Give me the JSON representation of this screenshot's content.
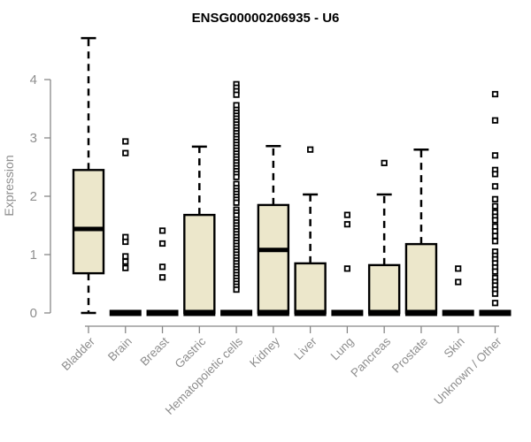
{
  "chart_data": {
    "type": "boxplot",
    "title": "ENSG00000206935 - U6",
    "ylabel": "Expression",
    "xlabel": "",
    "ylim": [
      0,
      4.75
    ],
    "yticks": [
      0,
      1,
      2,
      3,
      4
    ],
    "grid": false,
    "legend": false,
    "colors": {
      "box_fill": "#ece7cb",
      "box_line": "#000000",
      "axis": "#888888",
      "tick_text": "#8e8e8e",
      "title_text": "#000000"
    },
    "categories": [
      "Bladder",
      "Brain",
      "Breast",
      "Gastric",
      "Hematopoietic cells",
      "Kidney",
      "Liver",
      "Lung",
      "Pancreas",
      "Prostate",
      "Skin",
      "Unknown / Other"
    ],
    "boxes": [
      {
        "category": "Bladder",
        "low": 0,
        "q1": 0.68,
        "median": 1.44,
        "q3": 2.45,
        "high": 4.71,
        "outliers": []
      },
      {
        "category": "Brain",
        "low": 0,
        "q1": 0,
        "median": 0,
        "q3": 0,
        "high": 0,
        "outliers": [
          2.94,
          2.74,
          1.3,
          1.22,
          0.97,
          0.88,
          0.77
        ]
      },
      {
        "category": "Breast",
        "low": 0,
        "q1": 0,
        "median": 0,
        "q3": 0,
        "high": 0,
        "outliers": [
          1.41,
          1.19,
          0.79,
          0.61
        ]
      },
      {
        "category": "Gastric",
        "low": 0,
        "q1": 0,
        "median": 0,
        "q3": 1.68,
        "high": 2.85,
        "outliers": []
      },
      {
        "category": "Hematopoietic cells",
        "low": 0,
        "q1": 0,
        "median": 0,
        "q3": 0,
        "high": 0,
        "outliers": [
          3.92,
          3.86,
          3.8,
          3.74,
          3.56,
          3.48,
          3.43,
          3.38,
          3.33,
          3.28,
          3.23,
          3.18,
          3.13,
          3.08,
          3.03,
          2.98,
          2.93,
          2.88,
          2.83,
          2.78,
          2.73,
          2.68,
          2.63,
          2.58,
          2.53,
          2.48,
          2.43,
          2.38,
          2.33,
          2.21,
          2.14,
          2.09,
          2.04,
          1.99,
          1.94,
          1.89,
          1.77,
          1.72,
          1.67,
          1.6,
          1.55,
          1.5,
          1.45,
          1.4,
          1.35,
          1.3,
          1.25,
          1.2,
          1.15,
          1.1,
          1.05,
          1.0,
          0.95,
          0.9,
          0.85,
          0.8,
          0.75,
          0.7,
          0.65,
          0.6,
          0.55,
          0.5,
          0.45,
          0.4
        ]
      },
      {
        "category": "Kidney",
        "low": 0,
        "q1": 0,
        "median": 1.08,
        "q3": 1.85,
        "high": 2.86,
        "outliers": []
      },
      {
        "category": "Liver",
        "low": 0,
        "q1": 0,
        "median": 0,
        "q3": 0.85,
        "high": 2.03,
        "outliers": [
          2.8
        ]
      },
      {
        "category": "Lung",
        "low": 0,
        "q1": 0,
        "median": 0,
        "q3": 0,
        "high": 0,
        "outliers": [
          1.68,
          1.52,
          0.76
        ]
      },
      {
        "category": "Pancreas",
        "low": 0,
        "q1": 0,
        "median": 0,
        "q3": 0.82,
        "high": 2.03,
        "outliers": [
          2.57
        ]
      },
      {
        "category": "Prostate",
        "low": 0,
        "q1": 0,
        "median": 0,
        "q3": 1.18,
        "high": 2.8,
        "outliers": []
      },
      {
        "category": "Skin",
        "low": 0,
        "q1": 0,
        "median": 0,
        "q3": 0,
        "high": 0,
        "outliers": [
          0.76,
          0.53
        ]
      },
      {
        "category": "Unknown / Other",
        "low": 0,
        "q1": 0,
        "median": 0,
        "q3": 0,
        "high": 0,
        "outliers": [
          3.75,
          3.3,
          2.7,
          2.45,
          2.38,
          2.17,
          1.95,
          1.83,
          1.72,
          1.65,
          1.59,
          1.48,
          1.4,
          1.32,
          1.23,
          1.05,
          0.98,
          0.92,
          0.85,
          0.78,
          0.71,
          0.6,
          0.53,
          0.47,
          0.4,
          0.33,
          0.17
        ]
      }
    ]
  }
}
